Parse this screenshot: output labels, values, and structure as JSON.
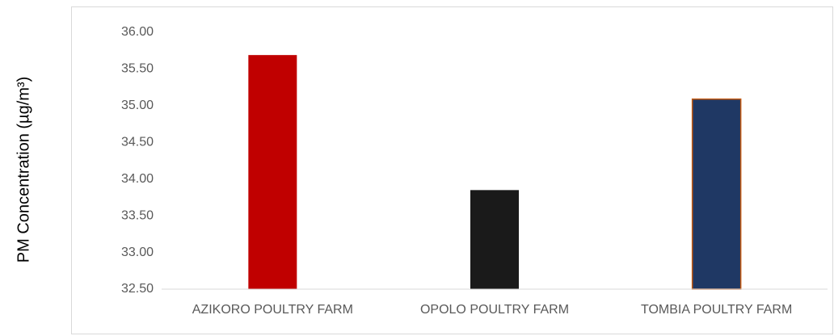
{
  "chart_data": {
    "type": "bar",
    "y_label": "PM Concentration (µg/m³)",
    "categories": [
      "AZIKORO POULTRY FARM",
      "OPOLO POULTRY FARM",
      "TOMBIA POULTRY FARM"
    ],
    "values": [
      35.69,
      33.85,
      35.09
    ],
    "colors": [
      "#c00000",
      "#1a1a1a",
      "#1f3864"
    ],
    "ylim": [
      32.5,
      36
    ],
    "yticks": [
      {
        "value": 32.5,
        "label": "32.50"
      },
      {
        "value": 33,
        "label": "33.00"
      },
      {
        "value": 33.5,
        "label": "33.50"
      },
      {
        "value": 34,
        "label": "34.00"
      },
      {
        "value": 34.5,
        "label": "34.50"
      },
      {
        "value": 35,
        "label": "35.00"
      },
      {
        "value": 35.5,
        "label": "35.50"
      },
      {
        "value": 36,
        "label": "36.00"
      }
    ],
    "grid": false
  }
}
